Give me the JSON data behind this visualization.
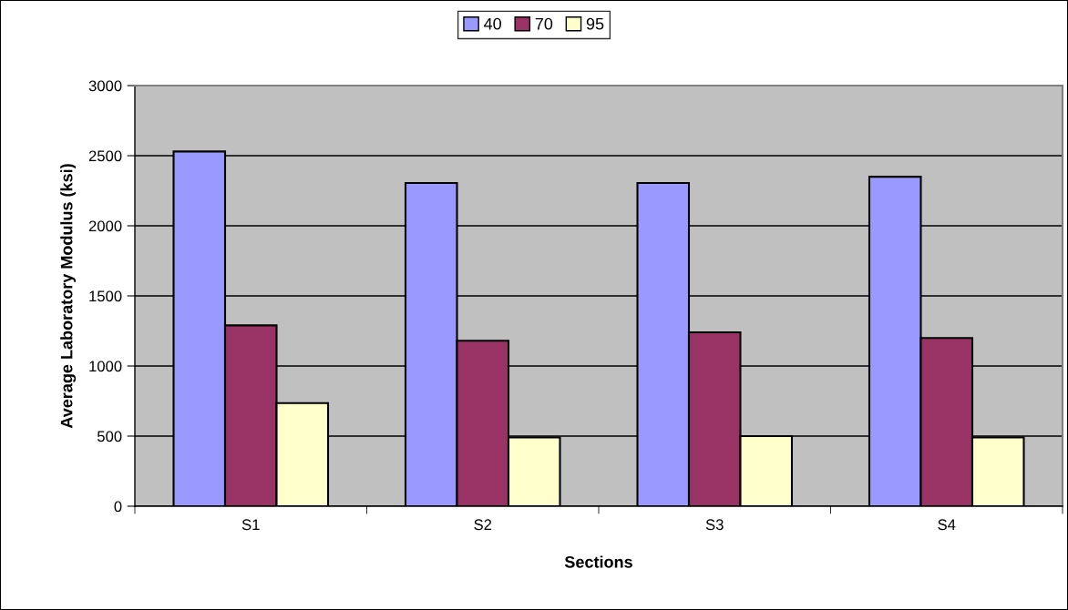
{
  "chart_data": {
    "type": "bar",
    "xlabel": "Sections",
    "ylabel": "Average Laboratory Modulus (ksi)",
    "categories": [
      "S1",
      "S2",
      "S3",
      "S4"
    ],
    "series": [
      {
        "name": "40",
        "color": "#9999ff",
        "values": [
          2530,
          2305,
          2305,
          2350
        ]
      },
      {
        "name": "70",
        "color": "#993366",
        "values": [
          1290,
          1180,
          1240,
          1200
        ]
      },
      {
        "name": "95",
        "color": "#ffffcc",
        "values": [
          735,
          490,
          500,
          490
        ]
      }
    ],
    "ylim": [
      0,
      3000
    ],
    "yticks": [
      0,
      500,
      1000,
      1500,
      2000,
      2500,
      3000
    ],
    "grid": "y",
    "legend": "top"
  }
}
